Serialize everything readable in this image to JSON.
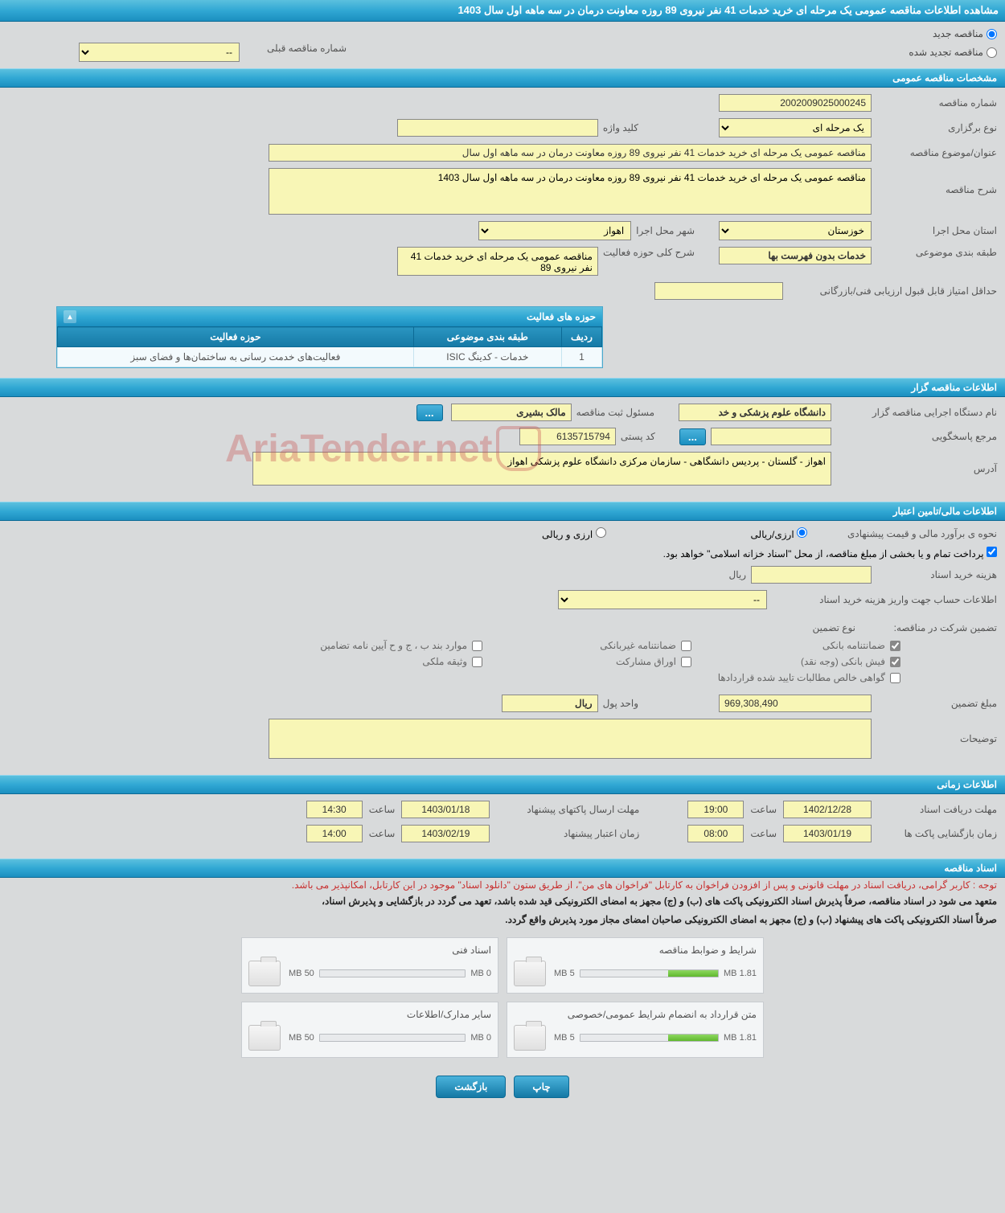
{
  "page_title": "مشاهده اطلاعات مناقصه عمومی یک مرحله ای خرید خدمات 41 نفر نیروی 89 روزه معاونت درمان در سه ماهه اول سال 1403",
  "radios": {
    "new_tender": "مناقصه جدید",
    "renewed_tender": "مناقصه تجدید شده"
  },
  "prev_number": {
    "label": "شماره مناقصه قبلی",
    "value": "--"
  },
  "sections": {
    "general": "مشخصات مناقصه عمومی",
    "organizer": "اطلاعات مناقصه گزار",
    "financial": "اطلاعات مالی/تامین اعتبار",
    "timing": "اطلاعات زمانی",
    "docs": "اسناد مناقصه"
  },
  "general": {
    "tender_no": {
      "label": "شماره مناقصه",
      "value": "2002009025000245"
    },
    "holding_type": {
      "label": "نوع برگزاری",
      "value": "یک مرحله ای"
    },
    "keyword": {
      "label": "کلید واژه",
      "value": ""
    },
    "subject": {
      "label": "عنوان/موضوع مناقصه",
      "value": "مناقصه عمومی یک مرحله ای خرید خدمات 41 نفر نیروی 89 روزه معاونت درمان در سه ماهه اول سال"
    },
    "description": {
      "label": "شرح مناقصه",
      "value": "مناقصه عمومی یک مرحله ای خرید خدمات 41 نفر نیروی 89 روزه معاونت درمان در سه ماهه اول سال 1403"
    },
    "province": {
      "label": "استان محل اجرا",
      "value": "خوزستان"
    },
    "city": {
      "label": "شهر محل اجرا",
      "value": "اهواز"
    },
    "classification": {
      "label": "طبقه بندی موضوعی",
      "value": "خدمات بدون فهرست بها"
    },
    "activity_summary": {
      "label": "شرح کلی حوزه فعالیت",
      "value": "مناقصه عمومی یک مرحله ای خرید خدمات 41 نفر نیروی 89"
    },
    "min_score": {
      "label": "حداقل امتیاز قابل قبول ارزیابی فنی/بازرگانی",
      "value": ""
    }
  },
  "activity": {
    "panel_title": "حوزه های فعالیت",
    "headers": {
      "row": "ردیف",
      "classification": "طبقه بندی موضوعی",
      "area": "حوزه فعالیت"
    },
    "rows": [
      {
        "n": "1",
        "classification": "خدمات - کدینگ ISIC",
        "area": "فعالیت‌های خدمت رسانی به ساختمان‌ها و فضای سبز"
      }
    ]
  },
  "organizer": {
    "agency": {
      "label": "نام دستگاه اجرایی مناقصه گزار",
      "value": "دانشگاه علوم پزشکی و خد"
    },
    "registrar": {
      "label": "مسئول ثبت مناقصه",
      "value": "مالک بشیری"
    },
    "responder": {
      "label": "مرجع پاسخگویی",
      "value": ""
    },
    "postal": {
      "label": "کد پستی",
      "value": "6135715794"
    },
    "address": {
      "label": "آدرس",
      "value": "اهواز - گلستان - پردیس دانشگاهی - سازمان مرکزی دانشگاه علوم پزشکی اهواز"
    },
    "more": "..."
  },
  "financial": {
    "estimate_method": {
      "label": "نحوه ی برآورد مالی و قیمت پیشنهادی",
      "opt1": "ارزی/ریالی",
      "opt2": "ارزی و ریالی"
    },
    "treasury_note": "پرداخت تمام و یا بخشی از مبلغ مناقصه، از محل \"اسناد خزانه اسلامی\" خواهد بود.",
    "doc_cost": {
      "label": "هزینه خرید اسناد",
      "value": "",
      "unit": "ریال"
    },
    "deposit_account": {
      "label": "اطلاعات حساب جهت واریز هزینه خرید اسناد",
      "value": "--"
    },
    "guarantee_label": "تضمین شرکت در مناقصه:",
    "guarantee_type_label": "نوع تضمین",
    "types": {
      "bank_guarantee": "ضمانتنامه بانکی",
      "nonbank_guarantee": "ضمانتنامه غیربانکی",
      "bylaws": "موارد بند ب ، ج و ح آیین نامه تضامین",
      "bank_receipt": "فیش بانکی (وجه نقد)",
      "securities": "اوراق مشارکت",
      "property": "وثیقه ملکی",
      "contract_cert": "گواهی خالص مطالبات تایید شده قراردادها"
    },
    "guarantee_amount": {
      "label": "مبلغ تضمین",
      "value": "969,308,490"
    },
    "currency_unit": {
      "label": "واحد پول",
      "value": "ریال"
    },
    "notes": {
      "label": "توضیحات",
      "value": ""
    }
  },
  "timing": {
    "doc_deadline": {
      "label": "مهلت دریافت اسناد",
      "date": "1402/12/28",
      "time_label": "ساعت",
      "time": "19:00"
    },
    "packet_deadline": {
      "label": "مهلت ارسال پاکتهای پیشنهاد",
      "date": "1403/01/18",
      "time_label": "ساعت",
      "time": "14:30"
    },
    "opening": {
      "label": "زمان بازگشایی پاکت ها",
      "date": "1403/01/19",
      "time_label": "ساعت",
      "time": "08:00"
    },
    "validity": {
      "label": "زمان اعتبار پیشنهاد",
      "date": "1403/02/19",
      "time_label": "ساعت",
      "time": "14:00"
    }
  },
  "notes": {
    "red": "توجه : کاربر گرامی، دریافت اسناد در مهلت قانونی و پس از افزودن فراخوان به کارتابل \"فراخوان های من\"، از طریق ستون \"دانلود اسناد\" موجود در این کارتابل، امکانپذیر می باشد.",
    "black1": "متعهد می شود در اسناد مناقصه، صرفاً پذیرش اسناد الکترونیکی پاکت های (ب) و (ج) مجهز به امضای الکترونیکی قید شده باشد، تعهد می گردد در بازگشایی و پذیرش اسناد،",
    "black2": "صرفاً اسناد الکترونیکی پاکت های پیشنهاد (ب) و (ج) مجهز به امضای الکترونیکی صاحبان امضای مجاز مورد پذیرش واقع گردد."
  },
  "docs": [
    {
      "title": "شرایط و ضوابط مناقصه",
      "used": "1.81 MB",
      "total": "5 MB",
      "pct": 36
    },
    {
      "title": "اسناد فنی",
      "used": "0 MB",
      "total": "50 MB",
      "pct": 0
    },
    {
      "title": "متن قرارداد به انضمام شرایط عمومی/خصوصی",
      "used": "1.81 MB",
      "total": "5 MB",
      "pct": 36
    },
    {
      "title": "سایر مدارک/اطلاعات",
      "used": "0 MB",
      "total": "50 MB",
      "pct": 0
    }
  ],
  "footer": {
    "print": "چاپ",
    "back": "بازگشت"
  },
  "watermark": "AriaTender.net",
  "colors": {
    "header_gradient": [
      "#5bc0de",
      "#1b8fc0"
    ],
    "background": "#d8dadb",
    "yellow_field": "#f8f6b6",
    "progress_green": "#5fb82e",
    "red_text": "#c83030"
  }
}
